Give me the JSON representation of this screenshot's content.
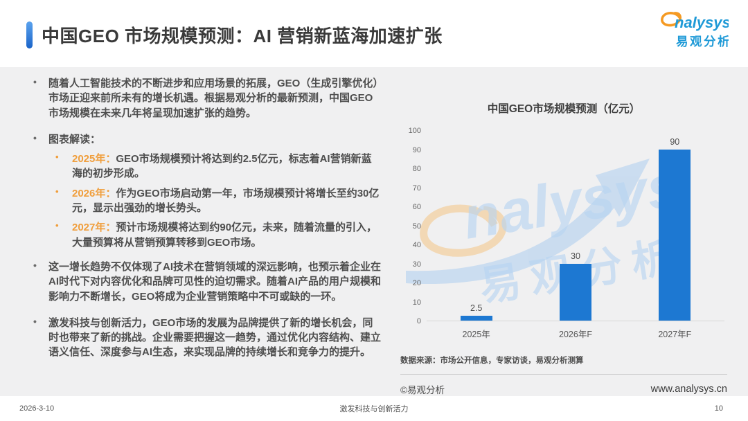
{
  "header": {
    "title": "中国GEO 市场规模预测：AI 营销新蓝海加速扩张",
    "logo": {
      "brand_en": "nalysys",
      "brand_cn": "易观分析"
    }
  },
  "bullets": {
    "b1": "随着人工智能技术的不断进步和应用场景的拓展，GEO（生成引擎优化）市场正迎来前所未有的增长机遇。根据易观分析的最新预测，中国GEO市场规模在未来几年将呈现加速扩张的趋势。",
    "b2_intro": "图表解读：",
    "sub": [
      {
        "label": "2025年：",
        "text": "GEO市场规模预计将达到约2.5亿元，标志着AI营销新蓝海的初步形成。"
      },
      {
        "label": "2026年：",
        "text": "作为GEO市场启动第一年，市场规模预计将增长至约30亿元，显示出强劲的增长势头。"
      },
      {
        "label": "2027年：",
        "text": "预计市场规模将达到约90亿元，未来，随着流量的引入，大量预算将从营销预算转移到GEO市场。"
      }
    ],
    "b3": "这一增长趋势不仅体现了AI技术在营销领域的深远影响，也预示着企业在AI时代下对内容优化和品牌可见性的迫切需求。随着AI产品的用户规模和影响力不断增长，GEO将成为企业营销策略中不可或缺的一环。",
    "b4": "激发科技与创新活力，GEO市场的发展为品牌提供了新的增长机会，同时也带来了新的挑战。企业需要把握这一趋势，通过优化内容结构、建立语义信任、深度参与AI生态，来实现品牌的持续增长和竞争力的提升。"
  },
  "chart_data": {
    "type": "bar",
    "title": "中国GEO市场规模预测（亿元）",
    "categories": [
      "2025年",
      "2026年F",
      "2027年F"
    ],
    "values": [
      2.5,
      30,
      90
    ],
    "value_labels": [
      "2.5",
      "30",
      "90"
    ],
    "ylim": [
      0,
      100
    ],
    "yticks": [
      100,
      90,
      80,
      70,
      60,
      50,
      40,
      30,
      20,
      10,
      0
    ],
    "bar_color": "#1d78d2",
    "grid": false,
    "legend": "none",
    "source": "数据来源：市场公开信息，专家访谈，易观分析测算"
  },
  "watermark": {
    "brand_en": "nalysys",
    "brand_cn": "易观分析"
  },
  "chart_footer": {
    "copyright": "©易观分析",
    "website": "www.analysys.cn"
  },
  "footer": {
    "date": "2026-3-10",
    "slogan": "激发科技与创新活力",
    "page": "10"
  }
}
